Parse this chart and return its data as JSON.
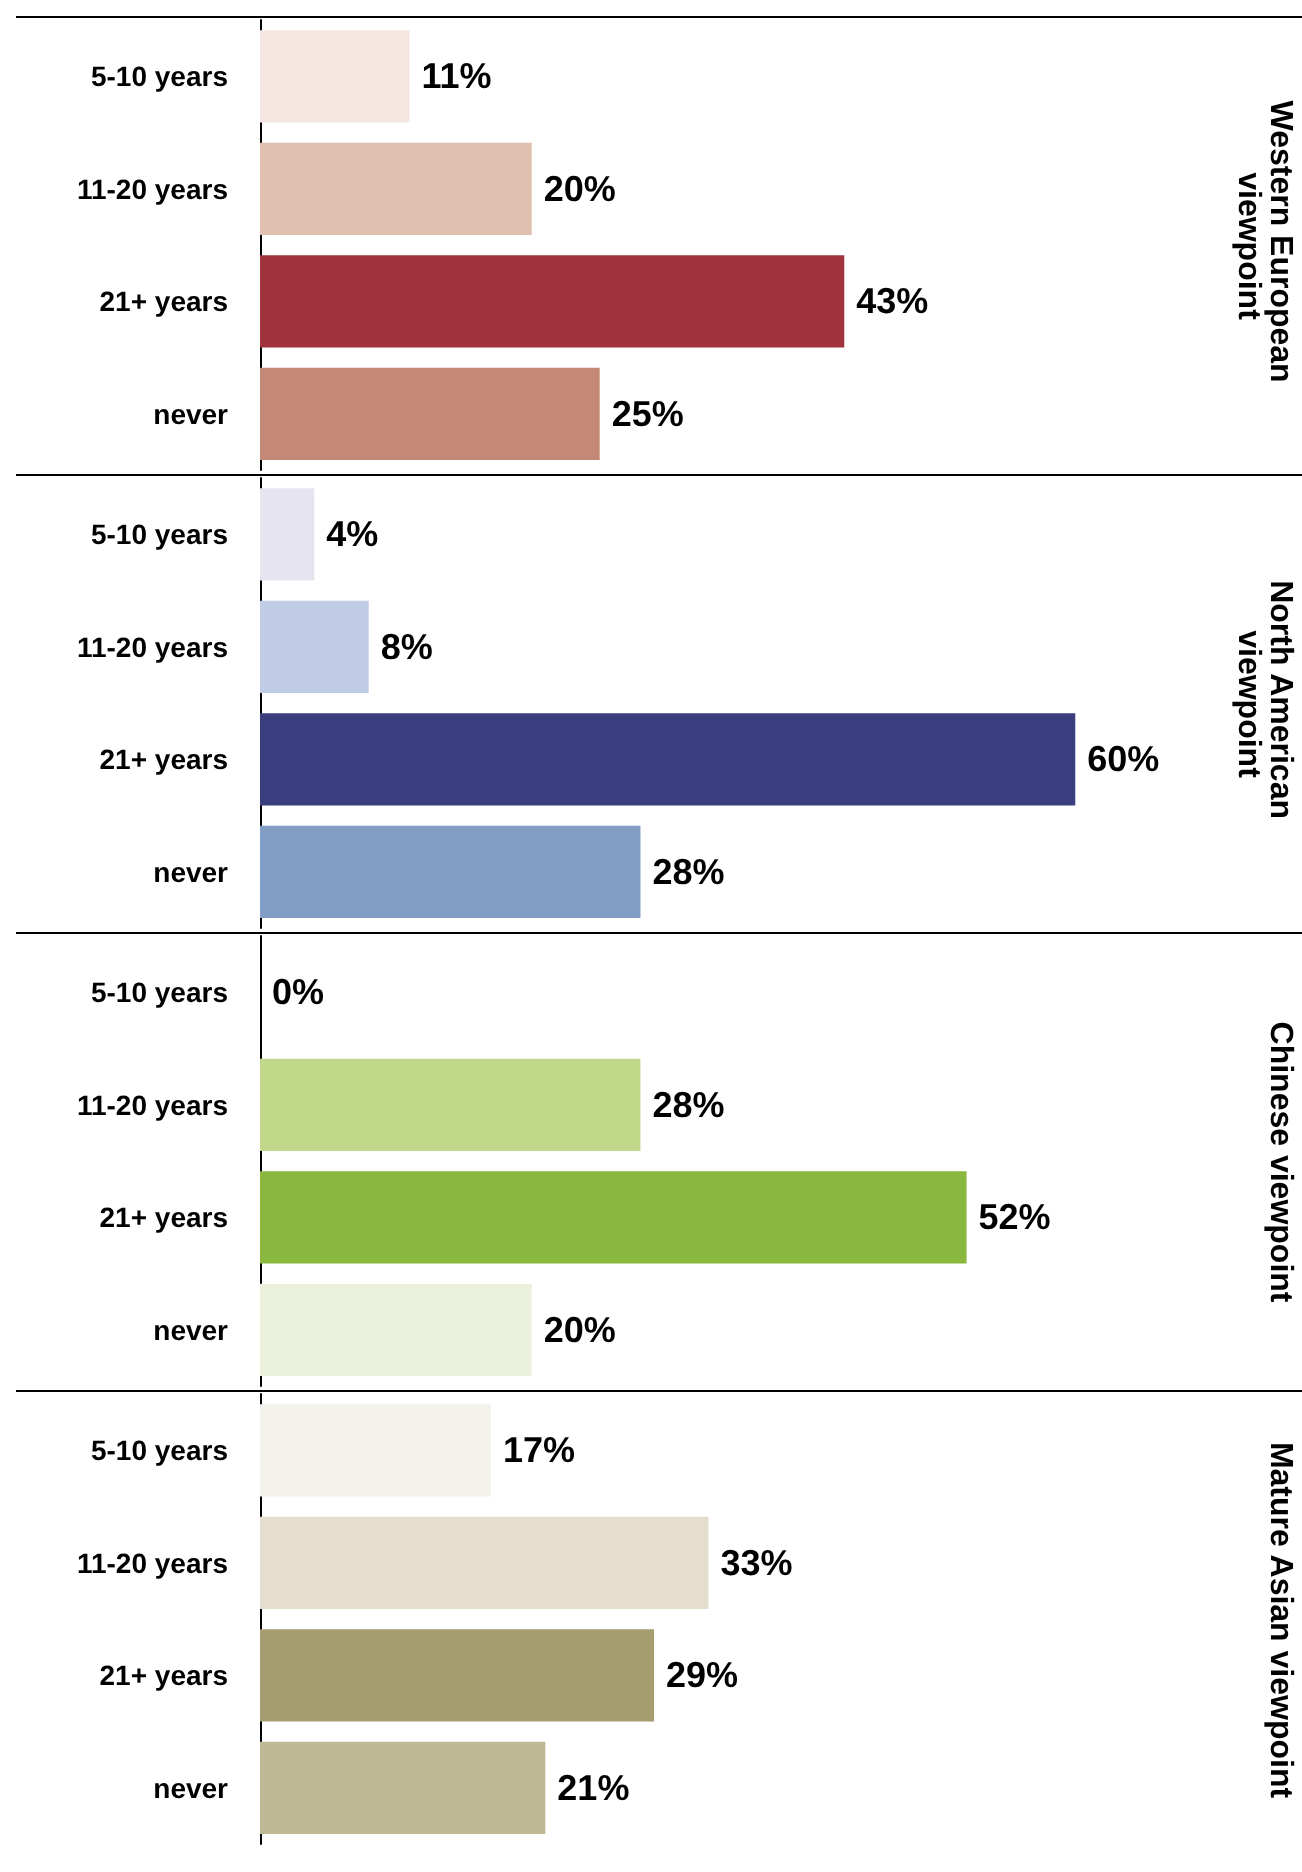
{
  "chart_data": [
    {
      "type": "bar",
      "orientation": "horizontal",
      "y2label": "Western European viewpoint",
      "categories": [
        "5-10 years",
        "11-20 years",
        "21+ years",
        "never"
      ],
      "values": [
        11,
        20,
        43,
        25
      ],
      "colors": [
        "#f5e6e1",
        "#dfbfae",
        "#a0333c",
        "#c48876"
      ],
      "value_labels": [
        "11%",
        "20%",
        "43%",
        "25%"
      ],
      "tick_labels": "y",
      "grid": false
    },
    {
      "type": "bar",
      "orientation": "horizontal",
      "y2label": "North American viewpoint",
      "categories": [
        "5-10 years",
        "11-20 years",
        "21+ years",
        "never"
      ],
      "values": [
        4,
        8,
        60,
        28
      ],
      "colors": [
        "#e6e4ef",
        "#c1cde6",
        "#3a3e7e",
        "#829dc6"
      ],
      "value_labels": [
        "4%",
        "8%",
        "60%",
        "28%"
      ],
      "tick_labels": "y",
      "grid": false
    },
    {
      "type": "bar",
      "orientation": "horizontal",
      "y2label": "Chinese viewpoint",
      "categories": [
        "5-10 years",
        "11-20 years",
        "21+ years",
        "never"
      ],
      "values": [
        0,
        28,
        52,
        20
      ],
      "colors": [
        "#eeeeee",
        "#c1d88a",
        "#8ab73e",
        "#ecf1dc"
      ],
      "value_labels": [
        "0%",
        "28%",
        "52%",
        "20%"
      ],
      "tick_labels": "y",
      "grid": false
    },
    {
      "type": "bar",
      "orientation": "horizontal",
      "y2label": "Mature Asian viewpoint",
      "categories": [
        "5-10 years",
        "11-20 years",
        "21+ years",
        "never"
      ],
      "values": [
        17,
        33,
        29,
        21
      ],
      "colors": [
        "#f4f2ec",
        "#e5dece",
        "#a59d6f",
        "#c0b996"
      ],
      "value_labels": [
        "17%",
        "33%",
        "29%",
        "21%"
      ],
      "tick_labels": "y",
      "grid": false
    }
  ]
}
